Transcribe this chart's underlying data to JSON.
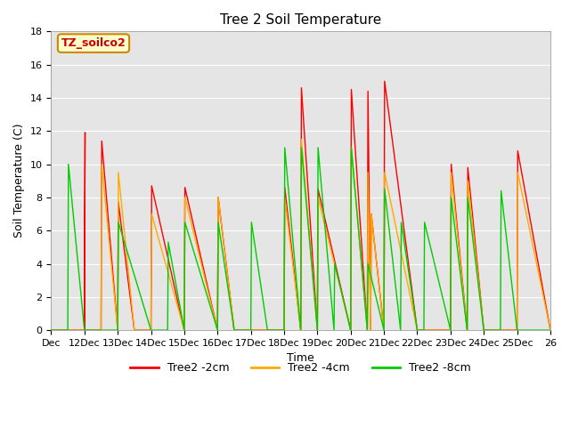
{
  "title": "Tree 2 Soil Temperature",
  "xlabel": "Time",
  "ylabel": "Soil Temperature (C)",
  "annotation": "TZ_soilco2",
  "ylim": [
    0,
    18
  ],
  "background_color": "#e5e5e5",
  "xtick_labels": [
    "Dec",
    "12Dec",
    "13Dec",
    "14Dec",
    "15Dec",
    "16Dec",
    "17Dec",
    "18Dec",
    "19Dec",
    "20Dec",
    "21Dec",
    "22Dec",
    "23Dec",
    "24Dec",
    "25Dec",
    "26"
  ],
  "xtick_positions": [
    0,
    1,
    2,
    3,
    4,
    5,
    6,
    7,
    8,
    9,
    10,
    11,
    12,
    13,
    14,
    15
  ],
  "series": {
    "Tree2 -2cm": {
      "color": "#ff0000",
      "x": [
        0.0,
        1.0,
        1.02,
        1.0,
        1.5,
        1.52,
        2.0,
        2.02,
        2.5,
        2.52,
        3.0,
        3.02,
        4.0,
        4.02,
        5.0,
        5.02,
        5.5,
        5.52,
        6.0,
        7.0,
        7.02,
        7.5,
        7.52,
        8.0,
        8.02,
        9.0,
        9.02,
        9.5,
        9.52,
        9.6,
        9.62,
        10.0,
        10.02,
        11.0,
        12.0,
        12.02,
        12.5,
        12.52,
        13.0,
        14.0,
        14.02,
        15.0
      ],
      "y": [
        0.0,
        0.0,
        11.9,
        0.0,
        0.0,
        11.4,
        0.0,
        7.7,
        0.0,
        0.0,
        0.0,
        8.7,
        0.0,
        8.6,
        0.0,
        8.0,
        0.0,
        0.0,
        0.0,
        0.0,
        8.6,
        0.0,
        14.6,
        0.0,
        8.5,
        0.0,
        14.5,
        0.0,
        14.4,
        0.0,
        7.0,
        0.0,
        15.0,
        0.0,
        0.0,
        10.0,
        0.0,
        9.8,
        0.0,
        0.0,
        10.8,
        0.0
      ]
    },
    "Tree2 -4cm": {
      "color": "#ffaa00",
      "x": [
        0.0,
        1.5,
        1.52,
        2.0,
        2.02,
        2.5,
        2.52,
        3.0,
        3.02,
        4.0,
        4.02,
        5.0,
        5.02,
        5.5,
        5.52,
        6.0,
        7.0,
        7.02,
        7.5,
        7.52,
        8.0,
        8.02,
        9.0,
        9.02,
        9.5,
        9.52,
        9.6,
        9.62,
        10.0,
        10.02,
        11.0,
        12.0,
        12.02,
        12.5,
        12.52,
        13.0,
        14.0,
        14.02,
        15.0
      ],
      "y": [
        0.0,
        0.0,
        10.0,
        0.0,
        9.5,
        0.0,
        0.0,
        0.0,
        7.0,
        0.0,
        8.0,
        0.0,
        8.0,
        0.0,
        0.0,
        0.0,
        0.0,
        8.0,
        0.0,
        11.5,
        0.0,
        8.0,
        0.0,
        11.0,
        0.0,
        9.5,
        0.0,
        7.0,
        0.0,
        9.5,
        0.0,
        0.0,
        9.5,
        0.0,
        9.0,
        0.0,
        0.0,
        9.5,
        0.0
      ]
    },
    "Tree2 -8cm": {
      "color": "#00cc00",
      "x": [
        0.0,
        0.5,
        0.52,
        1.0,
        1.02,
        2.0,
        2.02,
        3.0,
        3.5,
        3.52,
        4.0,
        4.02,
        5.0,
        5.02,
        5.5,
        5.52,
        6.0,
        6.02,
        6.5,
        6.52,
        7.0,
        7.02,
        7.5,
        7.52,
        8.0,
        8.02,
        8.5,
        8.52,
        9.0,
        9.02,
        9.5,
        9.52,
        10.0,
        10.02,
        10.5,
        10.52,
        11.0,
        11.2,
        11.22,
        12.0,
        12.02,
        12.5,
        12.52,
        13.0,
        13.5,
        13.52,
        14.0,
        14.02,
        15.0
      ],
      "y": [
        0.0,
        0.0,
        10.0,
        0.0,
        0.0,
        0.0,
        6.5,
        0.0,
        0.0,
        5.3,
        0.0,
        6.5,
        0.0,
        6.5,
        0.0,
        0.0,
        0.0,
        6.5,
        0.0,
        0.0,
        0.0,
        11.0,
        0.0,
        11.0,
        0.0,
        11.0,
        0.0,
        4.0,
        0.0,
        11.0,
        0.0,
        4.0,
        0.0,
        8.5,
        0.0,
        6.5,
        0.0,
        0.0,
        6.5,
        0.0,
        8.0,
        0.0,
        8.0,
        0.0,
        0.0,
        8.4,
        0.0,
        0.0,
        0.0
      ]
    }
  },
  "legend": {
    "labels": [
      "Tree2 -2cm",
      "Tree2 -4cm",
      "Tree2 -8cm"
    ],
    "colors": [
      "#ff0000",
      "#ffaa00",
      "#00cc00"
    ]
  }
}
